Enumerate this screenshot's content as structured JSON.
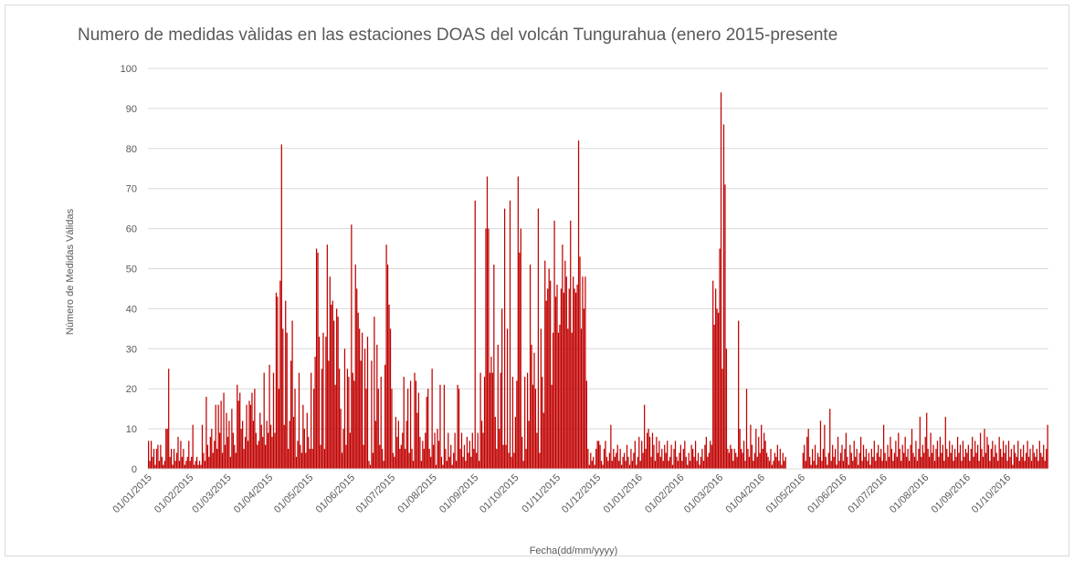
{
  "chart_data": {
    "type": "bar",
    "title": "Numero de medidas vàlidas en las estaciones DOAS del volcán Tungurahua (enero 2015-presente",
    "y_label": "Número de Medidas Válidas",
    "x_label": "Fecha(dd/mm/yyyy)",
    "color": "#c00000",
    "ylim": [
      0,
      100
    ],
    "yticks": [
      0,
      10,
      20,
      30,
      40,
      50,
      60,
      70,
      80,
      90,
      100
    ],
    "grid": true,
    "categories": [
      "01/01/2015",
      null,
      null,
      null,
      null,
      null,
      null,
      null,
      null,
      null,
      null,
      null,
      null,
      null,
      null,
      null,
      null,
      null,
      null,
      null,
      null,
      null,
      null,
      null,
      null,
      null,
      null,
      null,
      null,
      null,
      null,
      "01/02/2015",
      null,
      null,
      null,
      null,
      null,
      null,
      null,
      null,
      null,
      null,
      null,
      null,
      null,
      null,
      null,
      null,
      null,
      null,
      null,
      null,
      null,
      null,
      null,
      null,
      null,
      null,
      null,
      "01/03/2015",
      null,
      null,
      null,
      null,
      null,
      null,
      null,
      null,
      null,
      null,
      null,
      null,
      null,
      null,
      null,
      null,
      null,
      null,
      null,
      null,
      null,
      null,
      null,
      null,
      null,
      null,
      null,
      null,
      null,
      null,
      "01/04/2015",
      null,
      null,
      null,
      null,
      null,
      null,
      null,
      null,
      null,
      null,
      null,
      null,
      null,
      null,
      null,
      null,
      null,
      null,
      null,
      null,
      null,
      null,
      null,
      null,
      null,
      null,
      null,
      null,
      null,
      "01/05/2015",
      null,
      null,
      null,
      null,
      null,
      null,
      null,
      null,
      null,
      null,
      null,
      null,
      null,
      null,
      null,
      null,
      null,
      null,
      null,
      null,
      null,
      null,
      null,
      null,
      null,
      null,
      null,
      null,
      null,
      null,
      "01/06/2015",
      null,
      null,
      null,
      null,
      null,
      null,
      null,
      null,
      null,
      null,
      null,
      null,
      null,
      null,
      null,
      null,
      null,
      null,
      null,
      null,
      null,
      null,
      null,
      null,
      null,
      null,
      null,
      null,
      null,
      "01/07/2015",
      null,
      null,
      null,
      null,
      null,
      null,
      null,
      null,
      null,
      null,
      null,
      null,
      null,
      null,
      null,
      null,
      null,
      null,
      null,
      null,
      null,
      null,
      null,
      null,
      null,
      null,
      null,
      null,
      null,
      null,
      "01/08/2015",
      null,
      null,
      null,
      null,
      null,
      null,
      null,
      null,
      null,
      null,
      null,
      null,
      null,
      null,
      null,
      null,
      null,
      null,
      null,
      null,
      null,
      null,
      null,
      null,
      null,
      null,
      null,
      null,
      null,
      null,
      "01/09/2015",
      null,
      null,
      null,
      null,
      null,
      null,
      null,
      null,
      null,
      null,
      null,
      null,
      null,
      null,
      null,
      null,
      null,
      null,
      null,
      null,
      null,
      null,
      null,
      null,
      null,
      null,
      null,
      null,
      null,
      "01/10/2015",
      null,
      null,
      null,
      null,
      null,
      null,
      null,
      null,
      null,
      null,
      null,
      null,
      null,
      null,
      null,
      null,
      null,
      null,
      null,
      null,
      null,
      null,
      null,
      null,
      null,
      null,
      null,
      null,
      null,
      null,
      "01/11/2015",
      null,
      null,
      null,
      null,
      null,
      null,
      null,
      null,
      null,
      null,
      null,
      null,
      null,
      null,
      null,
      null,
      null,
      null,
      null,
      null,
      null,
      null,
      null,
      null,
      null,
      null,
      null,
      null,
      null,
      "01/12/2015",
      null,
      null,
      null,
      null,
      null,
      null,
      null,
      null,
      null,
      null,
      null,
      null,
      null,
      null,
      null,
      null,
      null,
      null,
      null,
      null,
      null,
      null,
      null,
      null,
      null,
      null,
      null,
      null,
      null,
      null,
      "01/01/2016",
      null,
      null,
      null,
      null,
      null,
      null,
      null,
      null,
      null,
      null,
      null,
      null,
      null,
      null,
      null,
      null,
      null,
      null,
      null,
      null,
      null,
      null,
      null,
      null,
      null,
      null,
      null,
      null,
      null,
      null,
      "01/02/2016",
      null,
      null,
      null,
      null,
      null,
      null,
      null,
      null,
      null,
      null,
      null,
      null,
      null,
      null,
      null,
      null,
      null,
      null,
      null,
      null,
      null,
      null,
      null,
      null,
      null,
      null,
      null,
      null,
      "01/03/2016",
      null,
      null,
      null,
      null,
      null,
      null,
      null,
      null,
      null,
      null,
      null,
      null,
      null,
      null,
      null,
      null,
      null,
      null,
      null,
      null,
      null,
      null,
      null,
      null,
      null,
      null,
      null,
      null,
      null,
      null,
      "01/04/2016",
      null,
      null,
      null,
      null,
      null,
      null,
      null,
      null,
      null,
      null,
      null,
      null,
      null,
      null,
      null,
      null,
      null,
      null,
      null,
      null,
      null,
      null,
      null,
      null,
      null,
      null,
      null,
      null,
      null,
      "01/05/2016",
      null,
      null,
      null,
      null,
      null,
      null,
      null,
      null,
      null,
      null,
      null,
      null,
      null,
      null,
      null,
      null,
      null,
      null,
      null,
      null,
      null,
      null,
      null,
      null,
      null,
      null,
      null,
      null,
      null,
      null,
      "01/06/2016",
      null,
      null,
      null,
      null,
      null,
      null,
      null,
      null,
      null,
      null,
      null,
      null,
      null,
      null,
      null,
      null,
      null,
      null,
      null,
      null,
      null,
      null,
      null,
      null,
      null,
      null,
      null,
      null,
      null,
      "01/07/2016",
      null,
      null,
      null,
      null,
      null,
      null,
      null,
      null,
      null,
      null,
      null,
      null,
      null,
      null,
      null,
      null,
      null,
      null,
      null,
      null,
      null,
      null,
      null,
      null,
      null,
      null,
      null,
      null,
      null,
      null,
      "01/08/2016",
      null,
      null,
      null,
      null,
      null,
      null,
      null,
      null,
      null,
      null,
      null,
      null,
      null,
      null,
      null,
      null,
      null,
      null,
      null,
      null,
      null,
      null,
      null,
      null,
      null,
      null,
      null,
      null,
      null,
      null,
      "01/09/2016",
      null,
      null,
      null,
      null,
      null,
      null,
      null,
      null,
      null,
      null,
      null,
      null,
      null,
      null,
      null,
      null,
      null,
      null,
      null,
      null,
      null,
      null,
      null,
      null,
      null,
      null,
      null,
      null,
      null,
      "01/10/2016",
      null,
      null,
      null,
      null,
      null,
      null,
      null,
      null,
      null,
      null,
      null,
      null,
      null,
      null,
      null,
      null,
      null,
      null,
      null,
      null,
      null,
      null,
      null,
      null,
      null,
      null,
      null,
      null,
      null,
      null
    ],
    "values": [
      7,
      2,
      7,
      3,
      5,
      1,
      5,
      6,
      2,
      6,
      3,
      1,
      2,
      10,
      10,
      25,
      3,
      5,
      1,
      5,
      2,
      4,
      8,
      2,
      7,
      3,
      5,
      1,
      2,
      3,
      7,
      2,
      3,
      11,
      1,
      2,
      3,
      1,
      2,
      1,
      11,
      4,
      2,
      18,
      6,
      3,
      8,
      10,
      4,
      7,
      16,
      5,
      16,
      9,
      17,
      4,
      19,
      6,
      14,
      8,
      12,
      3,
      15,
      9,
      6,
      4,
      21,
      17,
      19,
      10,
      12,
      5,
      8,
      16,
      7,
      17,
      16,
      19,
      12,
      20,
      9,
      6,
      7,
      14,
      11,
      8,
      24,
      6,
      12,
      9,
      26,
      11,
      8,
      24,
      9,
      44,
      43,
      20,
      47,
      81,
      35,
      11,
      42,
      34,
      5,
      12,
      27,
      37,
      13,
      20,
      3,
      7,
      24,
      6,
      4,
      16,
      10,
      4,
      14,
      8,
      5,
      24,
      5,
      20,
      28,
      55,
      54,
      33,
      6,
      25,
      34,
      5,
      33,
      56,
      27,
      48,
      41,
      42,
      37,
      21,
      40,
      38,
      25,
      15,
      4,
      10,
      30,
      6,
      25,
      23,
      9,
      61,
      24,
      22,
      51,
      45,
      39,
      35,
      27,
      34,
      6,
      30,
      20,
      33,
      2,
      1,
      27,
      4,
      38,
      12,
      31,
      20,
      6,
      23,
      5,
      2,
      26,
      56,
      51,
      41,
      35,
      20,
      4,
      3,
      13,
      8,
      12,
      5,
      6,
      9,
      23,
      5,
      12,
      20,
      4,
      22,
      5,
      2,
      24,
      22,
      14,
      19,
      8,
      2,
      7,
      5,
      9,
      18,
      20,
      5,
      3,
      25,
      6,
      9,
      1,
      10,
      7,
      21,
      3,
      1,
      21,
      5,
      2,
      9,
      3,
      6,
      1,
      4,
      9,
      2,
      21,
      20,
      5,
      9,
      3,
      6,
      2,
      8,
      4,
      7,
      3,
      9,
      5,
      67,
      4,
      9,
      2,
      24,
      12,
      9,
      23,
      60,
      73,
      60,
      24,
      28,
      24,
      51,
      13,
      5,
      31,
      10,
      24,
      40,
      6,
      65,
      6,
      35,
      4,
      67,
      3,
      23,
      4,
      13,
      22,
      73,
      54,
      60,
      8,
      2,
      23,
      5,
      24,
      12,
      51,
      31,
      21,
      29,
      20,
      9,
      65,
      4,
      35,
      23,
      14,
      52,
      42,
      45,
      50,
      47,
      21,
      34,
      62,
      43,
      46,
      34,
      36,
      45,
      56,
      44,
      52,
      48,
      35,
      45,
      62,
      34,
      48,
      45,
      44,
      46,
      82,
      53,
      35,
      48,
      40,
      48,
      22,
      5,
      1,
      4,
      2,
      3,
      1,
      5,
      7,
      7,
      6,
      2,
      1,
      5,
      7,
      3,
      2,
      4,
      11,
      2,
      5,
      3,
      4,
      6,
      2,
      5,
      1,
      3,
      4,
      2,
      6,
      3,
      1,
      5,
      2,
      4,
      7,
      1,
      3,
      8,
      2,
      7,
      4,
      16,
      5,
      9,
      10,
      8,
      3,
      9,
      6,
      2,
      8,
      4,
      7,
      3,
      5,
      2,
      6,
      4,
      7,
      2,
      3,
      6,
      1,
      5,
      7,
      3,
      2,
      4,
      6,
      2,
      5,
      7,
      3,
      1,
      4,
      2,
      6,
      5,
      3,
      7,
      2,
      4,
      1,
      3,
      5,
      2,
      6,
      8,
      3,
      4,
      7,
      6,
      47,
      36,
      45,
      40,
      39,
      55,
      94,
      25,
      86,
      71,
      30,
      5,
      4,
      6,
      5,
      2,
      5,
      4,
      3,
      37,
      10,
      5,
      4,
      7,
      2,
      20,
      5,
      3,
      11,
      6,
      2,
      4,
      10,
      3,
      8,
      4,
      11,
      5,
      9,
      7,
      4,
      3,
      2,
      5,
      1,
      2,
      4,
      3,
      6,
      2,
      5,
      1,
      4,
      2,
      3,
      null,
      null,
      null,
      null,
      null,
      null,
      null,
      null,
      null,
      null,
      null,
      null,
      4,
      6,
      2,
      8,
      10,
      3,
      1,
      5,
      2,
      6,
      1,
      4,
      3,
      12,
      2,
      5,
      11,
      3,
      1,
      4,
      15,
      2,
      6,
      3,
      5,
      1,
      8,
      2,
      4,
      6,
      2,
      5,
      9,
      3,
      1,
      6,
      4,
      2,
      7,
      3,
      5,
      1,
      4,
      8,
      2,
      6,
      3,
      5,
      2,
      4,
      1,
      5,
      3,
      7,
      2,
      4,
      6,
      3,
      5,
      2,
      11,
      4,
      2,
      6,
      3,
      8,
      5,
      2,
      4,
      7,
      3,
      9,
      5,
      2,
      6,
      4,
      8,
      3,
      5,
      2,
      6,
      10,
      4,
      3,
      7,
      2,
      5,
      13,
      3,
      6,
      4,
      8,
      14,
      5,
      3,
      9,
      4,
      6,
      2,
      5,
      7,
      3,
      8,
      4,
      6,
      2,
      13,
      5,
      3,
      7,
      4,
      6,
      2,
      5,
      3,
      8,
      4,
      6,
      2,
      7,
      3,
      5,
      4,
      6,
      2,
      5,
      8,
      3,
      7,
      4,
      6,
      2,
      9,
      5,
      3,
      10,
      4,
      8,
      6,
      2,
      5,
      7,
      3,
      6,
      4,
      2,
      8,
      5,
      3,
      7,
      4,
      6,
      2,
      7,
      3,
      5,
      1,
      6,
      4,
      3,
      7,
      2,
      5,
      3,
      6,
      2,
      4,
      7,
      3,
      5,
      2,
      6,
      4,
      3,
      5,
      2,
      7,
      4,
      3,
      6,
      2,
      5,
      11
    ]
  }
}
